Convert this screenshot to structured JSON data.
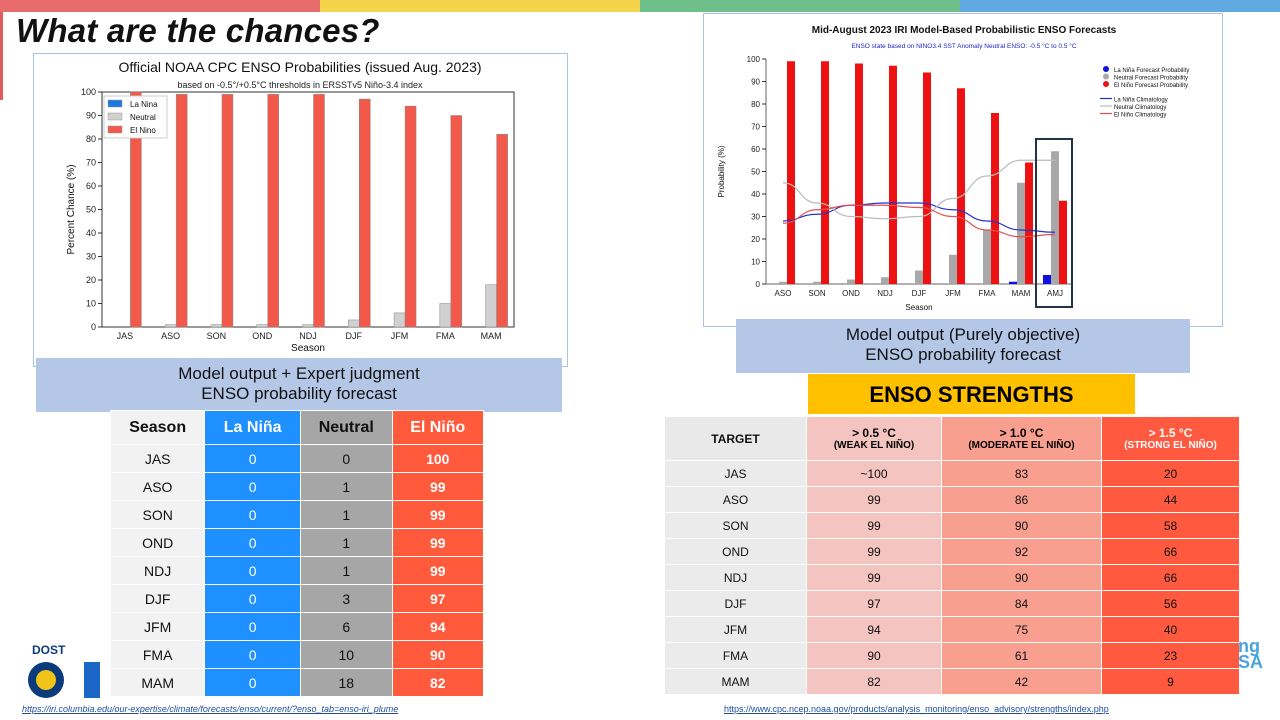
{
  "slide": {
    "title": "What are the chances?",
    "topbar_colors": [
      "#e86b6b",
      "#f3d34a",
      "#6fbf8a",
      "#5fa8e0"
    ]
  },
  "left_chart": {
    "caption_line1": "Model output + Expert judgment",
    "caption_line2": "ENSO probability forecast",
    "url": "https://iri.columbia.edu/our-expertise/climate/forecasts/enso/current/?enso_tab=enso-iri_plume"
  },
  "right_chart": {
    "caption_line1": "Model output (Purely objective)",
    "caption_line2": "ENSO probability forecast",
    "highlight_label": "AMJ"
  },
  "chart_data": [
    {
      "type": "bar",
      "title": "Official NOAA CPC ENSO Probabilities (issued Aug. 2023)",
      "subtitle": "based on -0.5°/+0.5°C thresholds in ERSSTv5 Niño-3.4 index",
      "xlabel": "Season",
      "ylabel": "Percent Chance (%)",
      "ylim": [
        0,
        100
      ],
      "yticks": [
        0,
        10,
        20,
        30,
        40,
        50,
        60,
        70,
        80,
        90,
        100
      ],
      "grid": false,
      "legend": "top-left",
      "categories": [
        "JAS",
        "ASO",
        "SON",
        "OND",
        "NDJ",
        "DJF",
        "JFM",
        "FMA",
        "MAM"
      ],
      "series": [
        {
          "name": "La Nina",
          "color": "#1f77e0",
          "values": [
            0,
            0,
            0,
            0,
            0,
            0,
            0,
            0,
            0
          ]
        },
        {
          "name": "Neutral",
          "color": "#d0d0d0",
          "values": [
            0,
            1,
            1,
            1,
            1,
            3,
            6,
            10,
            18
          ]
        },
        {
          "name": "El Nino",
          "color": "#f2594b",
          "values": [
            100,
            99,
            99,
            99,
            99,
            97,
            94,
            90,
            82
          ]
        }
      ]
    },
    {
      "type": "bar",
      "title": "Mid-August 2023 IRI Model-Based Probabilistic ENSO Forecasts",
      "subtitle": "ENSO state based on NINO3.4 SST Anomaly Neutral ENSO: -0.5 °C to 0.5 °C",
      "xlabel": "Season",
      "ylabel": "Probability (%)",
      "ylim": [
        0,
        100
      ],
      "yticks": [
        0,
        10,
        20,
        30,
        40,
        50,
        60,
        70,
        80,
        90,
        100
      ],
      "grid": false,
      "legend": "top-right",
      "categories": [
        "ASO",
        "SON",
        "OND",
        "NDJ",
        "DJF",
        "JFM",
        "FMA",
        "MAM",
        "AMJ"
      ],
      "series": [
        {
          "name": "La Niña Forecast Probability",
          "color": "#1010e0",
          "values": [
            0,
            0,
            0,
            0,
            0,
            0,
            0,
            1,
            4
          ]
        },
        {
          "name": "Neutral Forecast Probability",
          "color": "#a8a8a8",
          "values": [
            1,
            1,
            2,
            3,
            6,
            13,
            24,
            45,
            59
          ]
        },
        {
          "name": "El Niño Forecast Probability",
          "color": "#ee1111",
          "values": [
            99,
            99,
            98,
            97,
            94,
            87,
            76,
            54,
            37
          ]
        }
      ],
      "lines": [
        {
          "name": "La Niña Climatology",
          "color": "#2233cc",
          "values": [
            28,
            31,
            35,
            36,
            36,
            33,
            28,
            24,
            23
          ]
        },
        {
          "name": "Neutral Climatology",
          "color": "#bbbbbb",
          "values": [
            45,
            36,
            30,
            29,
            30,
            38,
            48,
            55,
            55
          ]
        },
        {
          "name": "El Niño Climatology",
          "color": "#e05050",
          "values": [
            27,
            33,
            35,
            35,
            34,
            30,
            24,
            21,
            22
          ]
        }
      ]
    }
  ],
  "left_table": {
    "headers": [
      "Season",
      "La Niña",
      "Neutral",
      "El Niño"
    ],
    "rows": [
      [
        "JAS",
        "0",
        "0",
        "100"
      ],
      [
        "ASO",
        "0",
        "1",
        "99"
      ],
      [
        "SON",
        "0",
        "1",
        "99"
      ],
      [
        "OND",
        "0",
        "1",
        "99"
      ],
      [
        "NDJ",
        "0",
        "1",
        "99"
      ],
      [
        "DJF",
        "0",
        "3",
        "97"
      ],
      [
        "JFM",
        "0",
        "6",
        "94"
      ],
      [
        "FMA",
        "0",
        "10",
        "90"
      ],
      [
        "MAM",
        "0",
        "18",
        "82"
      ]
    ]
  },
  "strengths": {
    "title": "ENSO STRENGTHS",
    "headers": [
      {
        "top": "TARGET",
        "bottom": ""
      },
      {
        "top": "> 0.5 °C",
        "bottom": "(WEAK EL NIÑO)"
      },
      {
        "top": "> 1.0 °C",
        "bottom": "(MODERATE  EL NIÑO)"
      },
      {
        "top": "> 1.5 °C",
        "bottom": "(STRONG EL NIÑO)"
      }
    ],
    "rows": [
      [
        "JAS",
        "~100",
        "83",
        "20"
      ],
      [
        "ASO",
        "99",
        "86",
        "44"
      ],
      [
        "SON",
        "99",
        "90",
        "58"
      ],
      [
        "OND",
        "99",
        "92",
        "66"
      ],
      [
        "NDJ",
        "99",
        "90",
        "66"
      ],
      [
        "DJF",
        "97",
        "84",
        "56"
      ],
      [
        "JFM",
        "94",
        "75",
        "40"
      ],
      [
        "FMA",
        "90",
        "61",
        "23"
      ],
      [
        "MAM",
        "82",
        "42",
        "9"
      ]
    ],
    "url": "https://www.cpc.ncep.noaa.gov/products/analysis_monitoring/enso_advisory/strengths/index.php"
  },
  "logos": {
    "left_text": "DOST",
    "right_partial_1": "ng",
    "right_partial_2": "SA"
  }
}
